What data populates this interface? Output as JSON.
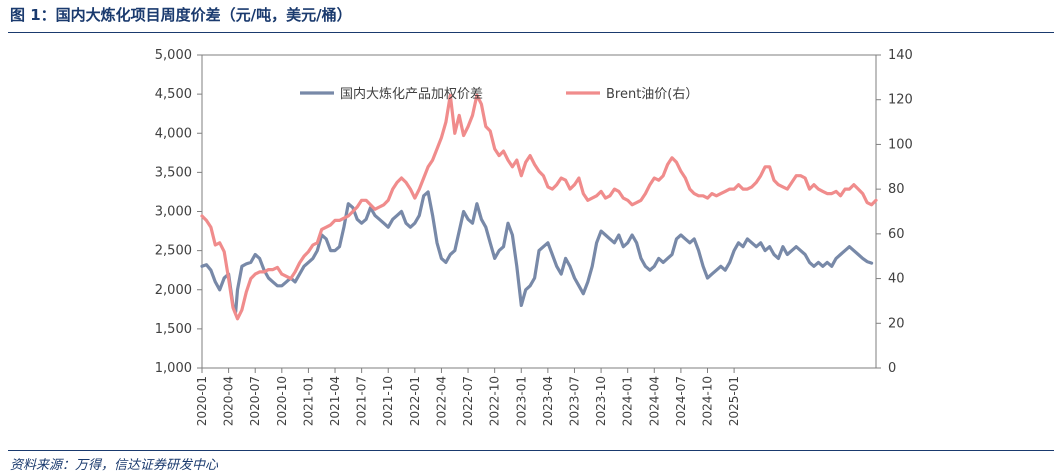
{
  "figure": {
    "title": "图 1：国内大炼化项目周度价差（元/吨，美元/桶）",
    "source": "资料来源：万得，信达证券研发中心"
  },
  "colors": {
    "spread": "#7889a8",
    "brent": "#f08c8c",
    "axis": "#7f7f7f",
    "text": "#404040",
    "title": "#1a3a6e"
  },
  "chart_data": {
    "type": "line",
    "grid": false,
    "legend_position": "top-center",
    "x_tick_labels": [
      "2020-01",
      "2020-04",
      "2020-07",
      "2020-10",
      "2021-01",
      "2021-04",
      "2021-07",
      "2021-10",
      "2022-01",
      "2022-04",
      "2022-07",
      "2022-10",
      "2023-01",
      "2023-04",
      "2023-07",
      "2023-10",
      "2024-01",
      "2024-04",
      "2024-07",
      "2024-10",
      "2025-01"
    ],
    "y_left": {
      "ylim": [
        1000,
        5000
      ],
      "ticks": [
        "1,000",
        "1,500",
        "2,000",
        "2,500",
        "3,000",
        "3,500",
        "4,000",
        "4,500",
        "5,000"
      ]
    },
    "y_right": {
      "ylim": [
        0,
        140
      ],
      "ticks": [
        "0",
        "20",
        "40",
        "60",
        "80",
        "100",
        "120",
        "140"
      ]
    },
    "x_unit": "months since 2020-01",
    "series": [
      {
        "name": "国内大炼化产品加权价差",
        "axis": "left",
        "color": "#7889a8",
        "points": [
          [
            0,
            2300
          ],
          [
            0.5,
            2320
          ],
          [
            1,
            2250
          ],
          [
            1.5,
            2100
          ],
          [
            2,
            2000
          ],
          [
            2.5,
            2150
          ],
          [
            3,
            2200
          ],
          [
            3.5,
            1800
          ],
          [
            3.8,
            1720
          ],
          [
            4,
            2000
          ],
          [
            4.5,
            2300
          ],
          [
            5,
            2330
          ],
          [
            5.5,
            2350
          ],
          [
            6,
            2450
          ],
          [
            6.5,
            2400
          ],
          [
            7,
            2250
          ],
          [
            7.5,
            2150
          ],
          [
            8,
            2100
          ],
          [
            8.5,
            2050
          ],
          [
            9,
            2050
          ],
          [
            9.5,
            2100
          ],
          [
            10,
            2150
          ],
          [
            10.5,
            2100
          ],
          [
            11,
            2200
          ],
          [
            11.5,
            2300
          ],
          [
            12,
            2350
          ],
          [
            12.5,
            2400
          ],
          [
            13,
            2500
          ],
          [
            13.5,
            2700
          ],
          [
            14,
            2650
          ],
          [
            14.5,
            2500
          ],
          [
            15,
            2500
          ],
          [
            15.5,
            2550
          ],
          [
            16,
            2800
          ],
          [
            16.5,
            3100
          ],
          [
            17,
            3050
          ],
          [
            17.5,
            2900
          ],
          [
            18,
            2850
          ],
          [
            18.5,
            2900
          ],
          [
            19,
            3050
          ],
          [
            19.5,
            2950
          ],
          [
            20,
            2900
          ],
          [
            20.5,
            2850
          ],
          [
            21,
            2800
          ],
          [
            21.5,
            2900
          ],
          [
            22,
            2950
          ],
          [
            22.5,
            3000
          ],
          [
            23,
            2850
          ],
          [
            23.5,
            2800
          ],
          [
            24,
            2850
          ],
          [
            24.5,
            2950
          ],
          [
            25,
            3200
          ],
          [
            25.5,
            3250
          ],
          [
            26,
            2950
          ],
          [
            26.5,
            2600
          ],
          [
            27,
            2400
          ],
          [
            27.5,
            2350
          ],
          [
            28,
            2450
          ],
          [
            28.5,
            2500
          ],
          [
            29,
            2750
          ],
          [
            29.5,
            3000
          ],
          [
            30,
            2900
          ],
          [
            30.5,
            2850
          ],
          [
            31,
            3100
          ],
          [
            31.5,
            2900
          ],
          [
            32,
            2800
          ],
          [
            32.5,
            2600
          ],
          [
            33,
            2400
          ],
          [
            33.5,
            2500
          ],
          [
            34,
            2550
          ],
          [
            34.5,
            2850
          ],
          [
            35,
            2700
          ],
          [
            35.5,
            2300
          ],
          [
            36,
            1800
          ],
          [
            36.5,
            2000
          ],
          [
            37,
            2050
          ],
          [
            37.5,
            2150
          ],
          [
            38,
            2500
          ],
          [
            38.5,
            2550
          ],
          [
            39,
            2600
          ],
          [
            39.5,
            2450
          ],
          [
            40,
            2300
          ],
          [
            40.5,
            2200
          ],
          [
            41,
            2400
          ],
          [
            41.5,
            2300
          ],
          [
            42,
            2150
          ],
          [
            42.5,
            2050
          ],
          [
            43,
            1950
          ],
          [
            43.5,
            2100
          ],
          [
            44,
            2300
          ],
          [
            44.5,
            2600
          ],
          [
            45,
            2750
          ],
          [
            45.5,
            2700
          ],
          [
            46,
            2650
          ],
          [
            46.5,
            2600
          ],
          [
            47,
            2700
          ],
          [
            47.5,
            2550
          ],
          [
            48,
            2600
          ],
          [
            48.5,
            2700
          ],
          [
            49,
            2600
          ],
          [
            49.5,
            2400
          ],
          [
            50,
            2300
          ],
          [
            50.5,
            2250
          ],
          [
            51,
            2300
          ],
          [
            51.5,
            2400
          ],
          [
            52,
            2350
          ],
          [
            52.5,
            2400
          ],
          [
            53,
            2450
          ],
          [
            53.5,
            2650
          ],
          [
            54,
            2700
          ],
          [
            54.5,
            2650
          ],
          [
            55,
            2600
          ],
          [
            55.5,
            2650
          ],
          [
            56,
            2500
          ],
          [
            56.5,
            2300
          ],
          [
            57,
            2150
          ],
          [
            57.5,
            2200
          ],
          [
            58,
            2250
          ],
          [
            58.5,
            2300
          ],
          [
            59,
            2250
          ],
          [
            59.5,
            2350
          ],
          [
            60,
            2500
          ],
          [
            60.5,
            2600
          ],
          [
            61,
            2550
          ],
          [
            61.5,
            2650
          ],
          [
            62,
            2600
          ],
          [
            62.5,
            2550
          ],
          [
            63,
            2600
          ],
          [
            63.5,
            2500
          ],
          [
            64,
            2550
          ],
          [
            64.5,
            2450
          ],
          [
            65,
            2400
          ],
          [
            65.5,
            2550
          ],
          [
            66,
            2450
          ],
          [
            66.5,
            2500
          ],
          [
            67,
            2550
          ],
          [
            67.5,
            2500
          ],
          [
            68,
            2450
          ],
          [
            68.5,
            2350
          ],
          [
            69,
            2300
          ],
          [
            69.5,
            2350
          ],
          [
            70,
            2300
          ],
          [
            70.5,
            2350
          ],
          [
            71,
            2300
          ],
          [
            71.5,
            2400
          ],
          [
            72,
            2450
          ],
          [
            72.5,
            2500
          ],
          [
            73,
            2550
          ],
          [
            73.5,
            2500
          ],
          [
            74,
            2450
          ],
          [
            74.5,
            2400
          ],
          [
            75,
            2360
          ],
          [
            75.5,
            2340
          ]
        ]
      },
      {
        "name": "Brent油价(右）",
        "axis": "right",
        "color": "#f08c8c",
        "points": [
          [
            0,
            68
          ],
          [
            0.5,
            66
          ],
          [
            1,
            63
          ],
          [
            1.5,
            55
          ],
          [
            2,
            56
          ],
          [
            2.5,
            52
          ],
          [
            3,
            40
          ],
          [
            3.5,
            27
          ],
          [
            4,
            22
          ],
          [
            4.5,
            26
          ],
          [
            5,
            34
          ],
          [
            5.5,
            40
          ],
          [
            6,
            42
          ],
          [
            6.5,
            43
          ],
          [
            7,
            43
          ],
          [
            7.5,
            44
          ],
          [
            8,
            44
          ],
          [
            8.5,
            45
          ],
          [
            9,
            42
          ],
          [
            9.5,
            41
          ],
          [
            10,
            40
          ],
          [
            10.5,
            43
          ],
          [
            11,
            47
          ],
          [
            11.5,
            50
          ],
          [
            12,
            52
          ],
          [
            12.5,
            55
          ],
          [
            13,
            56
          ],
          [
            13.5,
            62
          ],
          [
            14,
            63
          ],
          [
            14.5,
            64
          ],
          [
            15,
            66
          ],
          [
            15.5,
            66
          ],
          [
            16,
            67
          ],
          [
            16.5,
            68
          ],
          [
            17,
            70
          ],
          [
            17.5,
            72
          ],
          [
            18,
            75
          ],
          [
            18.5,
            75
          ],
          [
            19,
            73
          ],
          [
            19.5,
            71
          ],
          [
            20,
            72
          ],
          [
            20.5,
            73
          ],
          [
            21,
            75
          ],
          [
            21.5,
            80
          ],
          [
            22,
            83
          ],
          [
            22.5,
            85
          ],
          [
            23,
            83
          ],
          [
            23.5,
            80
          ],
          [
            24,
            76
          ],
          [
            24.5,
            80
          ],
          [
            25,
            85
          ],
          [
            25.5,
            90
          ],
          [
            26,
            93
          ],
          [
            26.5,
            98
          ],
          [
            27,
            103
          ],
          [
            27.5,
            110
          ],
          [
            28,
            122
          ],
          [
            28.5,
            105
          ],
          [
            29,
            113
          ],
          [
            29.5,
            104
          ],
          [
            30,
            108
          ],
          [
            30.5,
            113
          ],
          [
            31,
            122
          ],
          [
            31.5,
            118
          ],
          [
            32,
            108
          ],
          [
            32.5,
            106
          ],
          [
            33,
            98
          ],
          [
            33.5,
            95
          ],
          [
            34,
            97
          ],
          [
            34.5,
            93
          ],
          [
            35,
            90
          ],
          [
            35.5,
            93
          ],
          [
            36,
            86
          ],
          [
            36.5,
            92
          ],
          [
            37,
            95
          ],
          [
            37.5,
            91
          ],
          [
            38,
            88
          ],
          [
            38.5,
            86
          ],
          [
            39,
            81
          ],
          [
            39.5,
            80
          ],
          [
            40,
            82
          ],
          [
            40.5,
            85
          ],
          [
            41,
            84
          ],
          [
            41.5,
            80
          ],
          [
            42,
            82
          ],
          [
            42.5,
            85
          ],
          [
            43,
            78
          ],
          [
            43.5,
            75
          ],
          [
            44,
            76
          ],
          [
            44.5,
            77
          ],
          [
            45,
            79
          ],
          [
            45.5,
            76
          ],
          [
            46,
            77
          ],
          [
            46.5,
            80
          ],
          [
            47,
            79
          ],
          [
            47.5,
            76
          ],
          [
            48,
            75
          ],
          [
            48.5,
            73
          ],
          [
            49,
            74
          ],
          [
            49.5,
            75
          ],
          [
            50,
            78
          ],
          [
            50.5,
            82
          ],
          [
            51,
            85
          ],
          [
            51.5,
            84
          ],
          [
            52,
            86
          ],
          [
            52.5,
            91
          ],
          [
            53,
            94
          ],
          [
            53.5,
            92
          ],
          [
            54,
            88
          ],
          [
            54.5,
            85
          ],
          [
            55,
            80
          ],
          [
            55.5,
            78
          ],
          [
            56,
            77
          ],
          [
            56.5,
            77
          ],
          [
            57,
            76
          ],
          [
            57.5,
            78
          ],
          [
            58,
            77
          ],
          [
            58.5,
            78
          ],
          [
            59,
            79
          ],
          [
            59.5,
            80
          ],
          [
            60,
            80
          ],
          [
            60.5,
            82
          ],
          [
            61,
            80
          ],
          [
            61.5,
            80
          ],
          [
            62,
            81
          ],
          [
            62.5,
            83
          ],
          [
            63,
            86
          ],
          [
            63.5,
            90
          ],
          [
            64,
            90
          ],
          [
            64.5,
            84
          ],
          [
            65,
            82
          ],
          [
            65.5,
            81
          ],
          [
            66,
            80
          ],
          [
            66.5,
            83
          ],
          [
            67,
            86
          ],
          [
            67.5,
            86
          ],
          [
            68,
            85
          ],
          [
            68.5,
            80
          ],
          [
            69,
            82
          ],
          [
            69.5,
            80
          ],
          [
            70,
            79
          ],
          [
            70.5,
            78
          ],
          [
            71,
            78
          ],
          [
            71.5,
            79
          ],
          [
            72,
            77
          ],
          [
            72.5,
            80
          ],
          [
            73,
            80
          ],
          [
            73.5,
            82
          ],
          [
            74,
            80
          ],
          [
            74.5,
            78
          ],
          [
            75,
            74
          ],
          [
            75.5,
            73
          ],
          [
            76,
            75
          ]
        ]
      }
    ]
  }
}
